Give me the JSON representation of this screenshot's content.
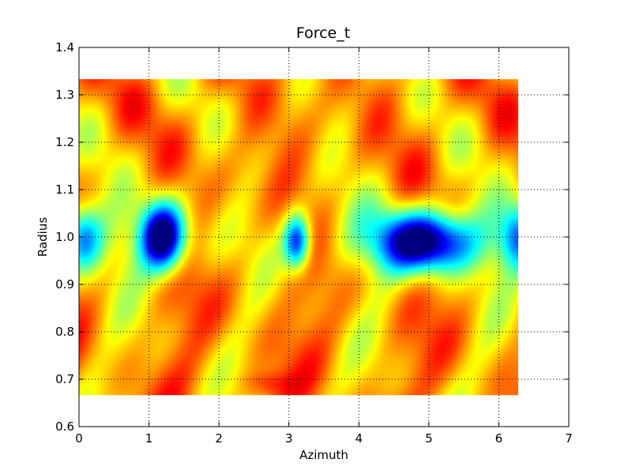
{
  "chart_data": {
    "type": "heatmap",
    "title": "Force_t",
    "xlabel": "Azimuth",
    "ylabel": "Radius",
    "xlim": [
      0,
      7
    ],
    "ylim": [
      0.6,
      1.4
    ],
    "x_ticks": [
      0,
      1,
      2,
      3,
      4,
      5,
      6,
      7
    ],
    "y_ticks": [
      0.6,
      0.7,
      0.8,
      0.9,
      1.0,
      1.1,
      1.2,
      1.3,
      1.4
    ],
    "x_tick_labels": [
      "0",
      "1",
      "2",
      "3",
      "4",
      "5",
      "6",
      "7"
    ],
    "y_tick_labels": [
      "0.6",
      "0.7",
      "0.8",
      "0.9",
      "1.0",
      "1.1",
      "1.2",
      "1.3",
      "1.4"
    ],
    "grid": true,
    "colormap": "jet",
    "data_extent": {
      "x": [
        0,
        6.283
      ],
      "y": [
        0.667,
        1.333
      ]
    },
    "features": [
      {
        "kind": "low",
        "x": 1.2,
        "y": 1.0,
        "sx": 0.22,
        "sy": 0.05,
        "amp": 1.0
      },
      {
        "kind": "low",
        "x": 4.95,
        "y": 0.99,
        "sx": 0.45,
        "sy": 0.045,
        "amp": 1.0
      },
      {
        "kind": "low",
        "x": 3.12,
        "y": 0.99,
        "sx": 0.13,
        "sy": 0.04,
        "amp": 0.7
      },
      {
        "kind": "low",
        "x": 0.05,
        "y": 1.0,
        "sx": 0.2,
        "sy": 0.05,
        "amp": 0.55
      },
      {
        "kind": "low",
        "x": 6.3,
        "y": 1.0,
        "sx": 0.2,
        "sy": 0.05,
        "amp": 0.55
      },
      {
        "kind": "high",
        "x": 2.35,
        "y": 0.99,
        "sx": 0.35,
        "sy": 0.09,
        "amp": 0.45
      },
      {
        "kind": "high",
        "x": 2.7,
        "y": 0.69,
        "sx": 0.25,
        "sy": 0.02,
        "amp": 0.6
      }
    ],
    "colors": {
      "dark_red": "#800000",
      "red": "#ff0000",
      "orange": "#ff8000",
      "yellow": "#ffff00",
      "cyan": "#00ffff",
      "blue": "#0000ff",
      "dark_blue": "#000080",
      "grid": "#000000"
    }
  }
}
